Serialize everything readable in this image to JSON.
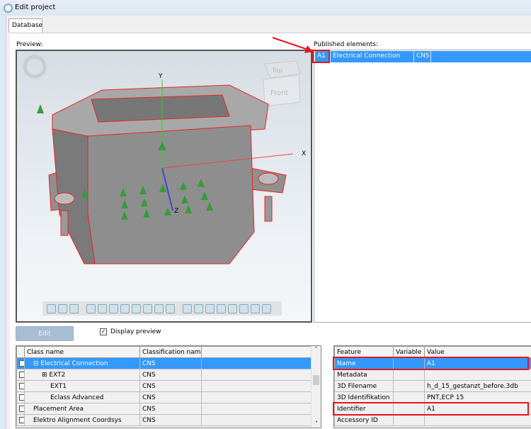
{
  "window": {
    "title": "Edit project"
  },
  "tabs": [
    {
      "label": "Database",
      "active": true
    }
  ],
  "preview": {
    "label": "Preview:",
    "axes": {
      "x": "X",
      "y": "Y",
      "z": "Z"
    },
    "view_cube": {
      "top": "Top",
      "front": "Front"
    },
    "toolbar_icons": [
      "wireframe-icon",
      "shaded-icon",
      "shaded-edges-icon",
      "zoom-icon",
      "zoom-fit-icon",
      "rotate-icon",
      "measure-icon",
      "section-icon",
      "render-icon",
      "material-icon",
      "perspective-icon",
      "view-iso-icon",
      "view-front-icon",
      "view-back-icon",
      "view-left-icon",
      "view-right-icon",
      "view-top-icon",
      "view-bottom-icon",
      "more-icon"
    ]
  },
  "published": {
    "label": "Published elements:",
    "rows": [
      {
        "id": "A1",
        "name": "Electrical Connection",
        "class": "CNS",
        "selected": true
      }
    ]
  },
  "edit_button": "Edit",
  "display_preview": {
    "label": "Display preview",
    "checked": true
  },
  "class_table": {
    "headers": [
      "Class name",
      "Classification name",
      ""
    ],
    "rows": [
      {
        "checked": true,
        "expander": "minus",
        "name": "Electrical Connection",
        "cls": "CNS",
        "selected": true,
        "indent": 1
      },
      {
        "checked": false,
        "expander": "plus",
        "name": "EXT2",
        "cls": "CNS",
        "indent": 2
      },
      {
        "checked": false,
        "expander": "",
        "name": "EXT1",
        "cls": "CNS",
        "indent": 3
      },
      {
        "checked": false,
        "expander": "",
        "name": "Eclass Advanced",
        "cls": "CNS",
        "indent": 3
      },
      {
        "checked": false,
        "expander": "",
        "name": "Placement Area",
        "cls": "CNS",
        "indent": 1
      },
      {
        "checked": false,
        "expander": "",
        "name": "Elektro Alignment Coordsys",
        "cls": "CNS",
        "indent": 1
      }
    ]
  },
  "feature_table": {
    "headers": [
      "Feature",
      "Variable",
      "Value"
    ],
    "rows": [
      {
        "feature": "Name",
        "variable": "",
        "value": "A1",
        "selected": true,
        "highlight": true
      },
      {
        "feature": "Metadata",
        "variable": "",
        "value": ""
      },
      {
        "feature": "3D Filename",
        "variable": "",
        "value": "h_d_15_gestanzt_before.3db"
      },
      {
        "feature": "3D Identifikation",
        "variable": "",
        "value": "PNT,ECP 15"
      },
      {
        "feature": "Identifier",
        "variable": "",
        "value": "A1",
        "highlight": true
      },
      {
        "feature": "Accessory ID",
        "variable": "",
        "value": ""
      }
    ]
  },
  "colors": {
    "selection": "#3399ff",
    "highlight": "#e8141c",
    "edit_disabled": "#a7bdd3"
  }
}
